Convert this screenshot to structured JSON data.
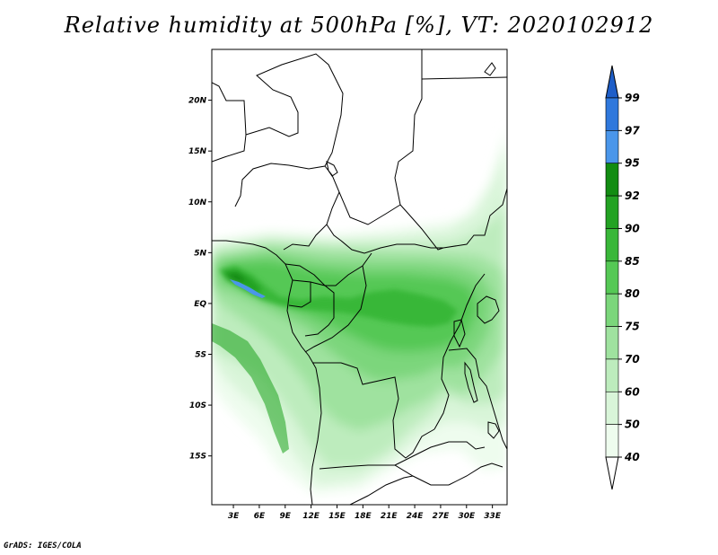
{
  "title": "Relative humidity at 500hPa [%], VT: 2020102912",
  "credit": "GrADS: IGES/COLA",
  "map": {
    "lat_labels": [
      "20N",
      "15N",
      "10N",
      "5N",
      "EQ",
      "5S",
      "10S",
      "15S"
    ],
    "lat_values": [
      20,
      15,
      10,
      5,
      0,
      -5,
      -10,
      -15
    ],
    "lon_labels": [
      "3E",
      "6E",
      "9E",
      "12E",
      "15E",
      "18E",
      "21E",
      "24E",
      "27E",
      "30E",
      "33E"
    ],
    "lon_values": [
      3,
      6,
      9,
      12,
      15,
      18,
      21,
      24,
      27,
      30,
      33
    ],
    "lon_range": [
      0.5,
      34.7
    ],
    "lat_range": [
      -19.8,
      25
    ]
  },
  "colorbar": {
    "labels": [
      "99",
      "97",
      "95",
      "92",
      "90",
      "85",
      "80",
      "75",
      "70",
      "60",
      "50",
      "40"
    ],
    "levels": [
      40,
      50,
      60,
      70,
      75,
      80,
      85,
      90,
      92,
      95,
      97,
      99
    ],
    "colors": {
      "above99": "#1e5ec8",
      "97-99": "#2f78dc",
      "95-97": "#4a96ea",
      "92-95": "#128c12",
      "90-92": "#23a223",
      "85-90": "#39b739",
      "80-85": "#55c855",
      "75-80": "#7bd67b",
      "70-75": "#9fe29f",
      "60-70": "#bdecbd",
      "50-60": "#d9f5d9",
      "40-50": "#eefcee",
      "below40": "#ffffff"
    }
  }
}
